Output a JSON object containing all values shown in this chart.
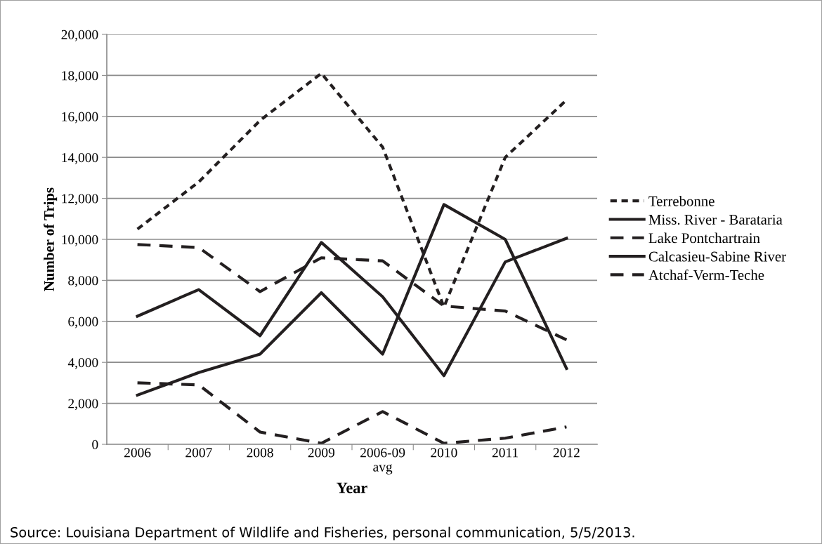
{
  "chart_data": {
    "type": "line",
    "xlabel": "Year",
    "ylabel": "Number of Trips",
    "categories": [
      "2006",
      "2007",
      "2008",
      "2009",
      "2006-09\navg",
      "2010",
      "2011",
      "2012"
    ],
    "series": [
      {
        "name": "Terrebonne",
        "color": "#231f20",
        "line_style": "dotted",
        "values": [
          10500,
          12800,
          15800,
          18100,
          14500,
          6700,
          14000,
          16800
        ]
      },
      {
        "name": "Miss. River - Barataria",
        "color": "#231f20",
        "line_style": "solid",
        "values": [
          6250,
          7550,
          5300,
          9850,
          7200,
          3350,
          8900,
          10050
        ]
      },
      {
        "name": "Lake Pontchartrain",
        "color": "#231f20",
        "line_style": "dashed",
        "values": [
          9750,
          9600,
          7450,
          9100,
          8950,
          6750,
          6500,
          5100
        ]
      },
      {
        "name": "Calcasieu-Sabine River",
        "color": "#231f20",
        "line_style": "solid",
        "values": [
          2400,
          3500,
          4400,
          7400,
          4400,
          11700,
          10000,
          3700
        ]
      },
      {
        "name": "Atchaf-Verm-Teche",
        "color": "#231f20",
        "line_style": "dashed",
        "values": [
          3000,
          2900,
          600,
          50,
          1600,
          50,
          300,
          850
        ]
      }
    ],
    "ylim": [
      0,
      20000
    ],
    "yticks": [
      0,
      {
        "value": 2000,
        "label": "2,000"
      },
      {
        "value": 4000,
        "label": "4,000"
      },
      {
        "value": 6000,
        "label": "6,000"
      },
      {
        "value": 8000,
        "label": "8,000"
      },
      {
        "value": 10000,
        "label": "10,000"
      },
      {
        "value": 12000,
        "label": "12,000"
      },
      {
        "value": 14000,
        "label": "14,000"
      },
      {
        "value": 16000,
        "label": "16,000"
      },
      {
        "value": 18000,
        "label": "18,000"
      },
      {
        "value": 20000,
        "label": "20,000"
      }
    ],
    "grid": "y",
    "legend": "right",
    "annotations": [
      "Source: Louisiana Department of Wildlife and Fisheries, personal communication, 5/5/2013."
    ]
  }
}
